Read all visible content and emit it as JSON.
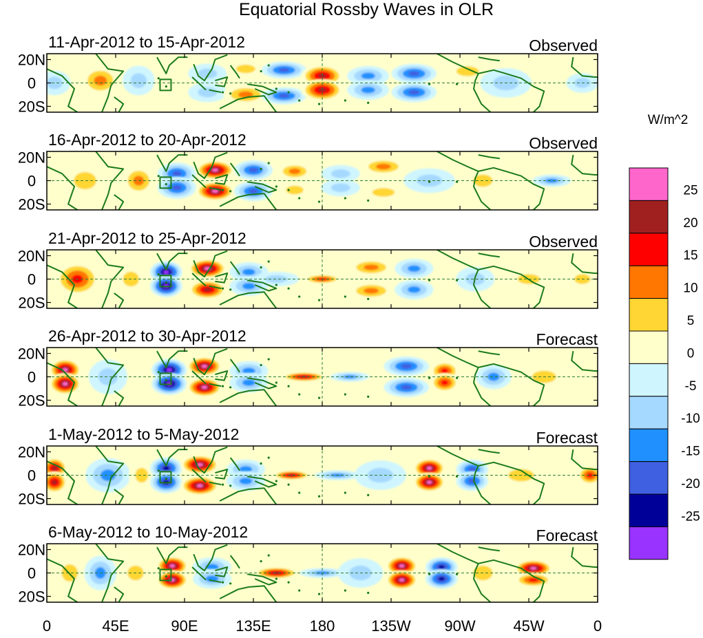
{
  "chart_data": {
    "type": "heatmap",
    "title": "Equatorial Rossby Waves in OLR",
    "units_label": "W/m^2",
    "x_ticks": [
      "0",
      "45E",
      "90E",
      "135E",
      "180",
      "135W",
      "90W",
      "45W",
      "0"
    ],
    "y_ticks": [
      "20N",
      "0",
      "20S"
    ],
    "xlim": [
      0,
      360
    ],
    "ylim": [
      -25,
      25
    ],
    "color_levels": [
      25,
      20,
      15,
      10,
      5,
      0,
      -5,
      -10,
      -15,
      -20,
      -25
    ],
    "color_bins": [
      "#ff66cc",
      "#a02020",
      "#ff0000",
      "#ff7700",
      "#ffd633",
      "#ffffcc",
      "#cff5ff",
      "#a6d9ff",
      "#2090ff",
      "#3f60e0",
      "#000099",
      "#9933ff"
    ],
    "panels": [
      {
        "date_range": "11-Apr-2012 to 15-Apr-2012",
        "kind": "Observed",
        "anomalies": [
          {
            "lon": 5,
            "lat": 0,
            "value": -5,
            "rx": 10,
            "ry": 10
          },
          {
            "lon": 35,
            "lat": 2,
            "value": 10,
            "rx": 12,
            "ry": 12
          },
          {
            "lon": 60,
            "lat": 2,
            "value": -5,
            "rx": 10,
            "ry": 12
          },
          {
            "lon": 105,
            "lat": 8,
            "value": -5,
            "rx": 12,
            "ry": 8
          },
          {
            "lon": 105,
            "lat": -8,
            "value": -5,
            "rx": 12,
            "ry": 8
          },
          {
            "lon": 130,
            "lat": 12,
            "value": 5,
            "rx": 12,
            "ry": 7
          },
          {
            "lon": 130,
            "lat": -10,
            "value": 10,
            "rx": 14,
            "ry": 8
          },
          {
            "lon": 155,
            "lat": 11,
            "value": -15,
            "rx": 14,
            "ry": 7
          },
          {
            "lon": 155,
            "lat": -11,
            "value": -15,
            "rx": 14,
            "ry": 7
          },
          {
            "lon": 180,
            "lat": 6,
            "value": 20,
            "rx": 13,
            "ry": 9
          },
          {
            "lon": 180,
            "lat": -6,
            "value": 20,
            "rx": 13,
            "ry": 9
          },
          {
            "lon": 210,
            "lat": 6,
            "value": -10,
            "rx": 13,
            "ry": 8
          },
          {
            "lon": 210,
            "lat": -6,
            "value": -10,
            "rx": 13,
            "ry": 8
          },
          {
            "lon": 240,
            "lat": 8,
            "value": -15,
            "rx": 14,
            "ry": 8
          },
          {
            "lon": 240,
            "lat": -8,
            "value": -15,
            "rx": 14,
            "ry": 8
          },
          {
            "lon": 275,
            "lat": 10,
            "value": 5,
            "rx": 14,
            "ry": 8
          },
          {
            "lon": 300,
            "lat": 0,
            "value": -5,
            "rx": 16,
            "ry": 12
          },
          {
            "lon": 350,
            "lat": 0,
            "value": -5,
            "rx": 10,
            "ry": 8
          }
        ]
      },
      {
        "date_range": "16-Apr-2012 to 20-Apr-2012",
        "kind": "Observed",
        "anomalies": [
          {
            "lon": 25,
            "lat": 0,
            "value": 5,
            "rx": 14,
            "ry": 14
          },
          {
            "lon": 60,
            "lat": 0,
            "value": 10,
            "rx": 10,
            "ry": 12
          },
          {
            "lon": 85,
            "lat": 6,
            "value": -15,
            "rx": 12,
            "ry": 9
          },
          {
            "lon": 85,
            "lat": -6,
            "value": -15,
            "rx": 12,
            "ry": 9
          },
          {
            "lon": 110,
            "lat": 9,
            "value": 25,
            "rx": 12,
            "ry": 8
          },
          {
            "lon": 110,
            "lat": -9,
            "value": 25,
            "rx": 12,
            "ry": 8
          },
          {
            "lon": 135,
            "lat": 9,
            "value": -15,
            "rx": 12,
            "ry": 8
          },
          {
            "lon": 135,
            "lat": -9,
            "value": -15,
            "rx": 12,
            "ry": 8
          },
          {
            "lon": 162,
            "lat": 8,
            "value": 10,
            "rx": 11,
            "ry": 7
          },
          {
            "lon": 162,
            "lat": -8,
            "value": 5,
            "rx": 11,
            "ry": 7
          },
          {
            "lon": 192,
            "lat": 6,
            "value": -5,
            "rx": 12,
            "ry": 7
          },
          {
            "lon": 192,
            "lat": -6,
            "value": -5,
            "rx": 12,
            "ry": 7
          },
          {
            "lon": 220,
            "lat": 12,
            "value": 10,
            "rx": 14,
            "ry": 7
          },
          {
            "lon": 220,
            "lat": -10,
            "value": 5,
            "rx": 14,
            "ry": 7
          },
          {
            "lon": 250,
            "lat": 0,
            "value": -5,
            "rx": 16,
            "ry": 10
          },
          {
            "lon": 285,
            "lat": 0,
            "value": 5,
            "rx": 12,
            "ry": 10
          },
          {
            "lon": 330,
            "lat": 0,
            "value": -10,
            "rx": 12,
            "ry": 5
          }
        ]
      },
      {
        "date_range": "21-Apr-2012 to 25-Apr-2012",
        "kind": "Observed",
        "anomalies": [
          {
            "lon": 20,
            "lat": 0,
            "value": 15,
            "rx": 14,
            "ry": 14
          },
          {
            "lon": 55,
            "lat": 0,
            "value": 5,
            "rx": 10,
            "ry": 12
          },
          {
            "lon": 78,
            "lat": 6,
            "value": -25,
            "rx": 10,
            "ry": 9
          },
          {
            "lon": 78,
            "lat": -6,
            "value": -25,
            "rx": 10,
            "ry": 9
          },
          {
            "lon": 105,
            "lat": 9,
            "value": 25,
            "rx": 12,
            "ry": 8
          },
          {
            "lon": 105,
            "lat": -9,
            "value": 20,
            "rx": 12,
            "ry": 8
          },
          {
            "lon": 132,
            "lat": 6,
            "value": -10,
            "rx": 12,
            "ry": 8
          },
          {
            "lon": 132,
            "lat": -6,
            "value": -10,
            "rx": 12,
            "ry": 8
          },
          {
            "lon": 150,
            "lat": 0,
            "value": -5,
            "rx": 14,
            "ry": 6
          },
          {
            "lon": 180,
            "lat": 0,
            "value": 15,
            "rx": 12,
            "ry": 4
          },
          {
            "lon": 212,
            "lat": 10,
            "value": 10,
            "rx": 14,
            "ry": 7
          },
          {
            "lon": 212,
            "lat": -10,
            "value": 10,
            "rx": 14,
            "ry": 7
          },
          {
            "lon": 240,
            "lat": 9,
            "value": -10,
            "rx": 12,
            "ry": 8
          },
          {
            "lon": 240,
            "lat": -9,
            "value": -10,
            "rx": 12,
            "ry": 8
          },
          {
            "lon": 280,
            "lat": 0,
            "value": -5,
            "rx": 12,
            "ry": 10
          },
          {
            "lon": 315,
            "lat": 0,
            "value": 5,
            "rx": 14,
            "ry": 8
          },
          {
            "lon": 350,
            "lat": 0,
            "value": 5,
            "rx": 10,
            "ry": 8
          }
        ]
      },
      {
        "date_range": "26-Apr-2012 to 30-Apr-2012",
        "kind": "Forecast",
        "anomalies": [
          {
            "lon": 12,
            "lat": 6,
            "value": 25,
            "rx": 10,
            "ry": 9
          },
          {
            "lon": 12,
            "lat": -6,
            "value": 25,
            "rx": 10,
            "ry": 9
          },
          {
            "lon": 40,
            "lat": 0,
            "value": -5,
            "rx": 12,
            "ry": 14
          },
          {
            "lon": 80,
            "lat": 6,
            "value": -25,
            "rx": 11,
            "ry": 9
          },
          {
            "lon": 80,
            "lat": -6,
            "value": -25,
            "rx": 11,
            "ry": 9
          },
          {
            "lon": 103,
            "lat": 9,
            "value": 25,
            "rx": 11,
            "ry": 8
          },
          {
            "lon": 103,
            "lat": -9,
            "value": 25,
            "rx": 11,
            "ry": 8
          },
          {
            "lon": 132,
            "lat": 5,
            "value": -10,
            "rx": 12,
            "ry": 8
          },
          {
            "lon": 132,
            "lat": -5,
            "value": -10,
            "rx": 12,
            "ry": 8
          },
          {
            "lon": 168,
            "lat": 0,
            "value": 20,
            "rx": 14,
            "ry": 4
          },
          {
            "lon": 198,
            "lat": 0,
            "value": -10,
            "rx": 12,
            "ry": 4
          },
          {
            "lon": 235,
            "lat": 9,
            "value": -15,
            "rx": 14,
            "ry": 8
          },
          {
            "lon": 235,
            "lat": -9,
            "value": -15,
            "rx": 14,
            "ry": 8
          },
          {
            "lon": 260,
            "lat": 5,
            "value": 15,
            "rx": 9,
            "ry": 8
          },
          {
            "lon": 260,
            "lat": -5,
            "value": 15,
            "rx": 9,
            "ry": 8
          },
          {
            "lon": 292,
            "lat": 0,
            "value": -10,
            "rx": 11,
            "ry": 10
          },
          {
            "lon": 325,
            "lat": 0,
            "value": 5,
            "rx": 15,
            "ry": 10
          }
        ]
      },
      {
        "date_range": "1-May-2012 to 5-May-2012",
        "kind": "Forecast",
        "anomalies": [
          {
            "lon": 5,
            "lat": 6,
            "value": 20,
            "rx": 8,
            "ry": 9
          },
          {
            "lon": 5,
            "lat": -6,
            "value": 20,
            "rx": 8,
            "ry": 9
          },
          {
            "lon": 40,
            "lat": 0,
            "value": -10,
            "rx": 14,
            "ry": 14
          },
          {
            "lon": 62,
            "lat": 0,
            "value": 5,
            "rx": 8,
            "ry": 12
          },
          {
            "lon": 78,
            "lat": 6,
            "value": -20,
            "rx": 10,
            "ry": 9
          },
          {
            "lon": 78,
            "lat": -6,
            "value": -20,
            "rx": 10,
            "ry": 9
          },
          {
            "lon": 100,
            "lat": 9,
            "value": 25,
            "rx": 12,
            "ry": 8
          },
          {
            "lon": 100,
            "lat": -9,
            "value": 25,
            "rx": 12,
            "ry": 8
          },
          {
            "lon": 130,
            "lat": 5,
            "value": -10,
            "rx": 12,
            "ry": 8
          },
          {
            "lon": 130,
            "lat": -5,
            "value": -10,
            "rx": 12,
            "ry": 8
          },
          {
            "lon": 160,
            "lat": 0,
            "value": 20,
            "rx": 12,
            "ry": 4
          },
          {
            "lon": 190,
            "lat": 0,
            "value": -10,
            "rx": 14,
            "ry": 4
          },
          {
            "lon": 218,
            "lat": 0,
            "value": -5,
            "rx": 16,
            "ry": 12
          },
          {
            "lon": 250,
            "lat": 6,
            "value": 25,
            "rx": 10,
            "ry": 8
          },
          {
            "lon": 250,
            "lat": -6,
            "value": 25,
            "rx": 10,
            "ry": 8
          },
          {
            "lon": 278,
            "lat": 5,
            "value": -15,
            "rx": 10,
            "ry": 8
          },
          {
            "lon": 278,
            "lat": -5,
            "value": -15,
            "rx": 10,
            "ry": 8
          },
          {
            "lon": 310,
            "lat": 0,
            "value": 5,
            "rx": 16,
            "ry": 10
          },
          {
            "lon": 355,
            "lat": 0,
            "value": 15,
            "rx": 8,
            "ry": 8
          }
        ]
      },
      {
        "date_range": "6-May-2012 to 10-May-2012",
        "kind": "Forecast",
        "anomalies": [
          {
            "lon": 15,
            "lat": 0,
            "value": 5,
            "rx": 10,
            "ry": 14
          },
          {
            "lon": 35,
            "lat": 0,
            "value": -10,
            "rx": 10,
            "ry": 14
          },
          {
            "lon": 58,
            "lat": 0,
            "value": 5,
            "rx": 10,
            "ry": 12
          },
          {
            "lon": 82,
            "lat": 6,
            "value": 25,
            "rx": 10,
            "ry": 8
          },
          {
            "lon": 82,
            "lat": -6,
            "value": 25,
            "rx": 10,
            "ry": 8
          },
          {
            "lon": 108,
            "lat": 5,
            "value": -10,
            "rx": 12,
            "ry": 8
          },
          {
            "lon": 108,
            "lat": -5,
            "value": -10,
            "rx": 12,
            "ry": 8
          },
          {
            "lon": 150,
            "lat": 0,
            "value": 20,
            "rx": 14,
            "ry": 5
          },
          {
            "lon": 180,
            "lat": 0,
            "value": -10,
            "rx": 14,
            "ry": 4
          },
          {
            "lon": 205,
            "lat": 0,
            "value": -5,
            "rx": 14,
            "ry": 12
          },
          {
            "lon": 232,
            "lat": 6,
            "value": 25,
            "rx": 10,
            "ry": 8
          },
          {
            "lon": 232,
            "lat": -6,
            "value": 25,
            "rx": 10,
            "ry": 8
          },
          {
            "lon": 258,
            "lat": 5,
            "value": -20,
            "rx": 10,
            "ry": 8
          },
          {
            "lon": 258,
            "lat": -5,
            "value": -20,
            "rx": 10,
            "ry": 8
          },
          {
            "lon": 285,
            "lat": 0,
            "value": 5,
            "rx": 12,
            "ry": 12
          },
          {
            "lon": 318,
            "lat": 4,
            "value": 25,
            "rx": 12,
            "ry": 7
          },
          {
            "lon": 318,
            "lat": -6,
            "value": 15,
            "rx": 12,
            "ry": 6
          }
        ]
      }
    ]
  }
}
